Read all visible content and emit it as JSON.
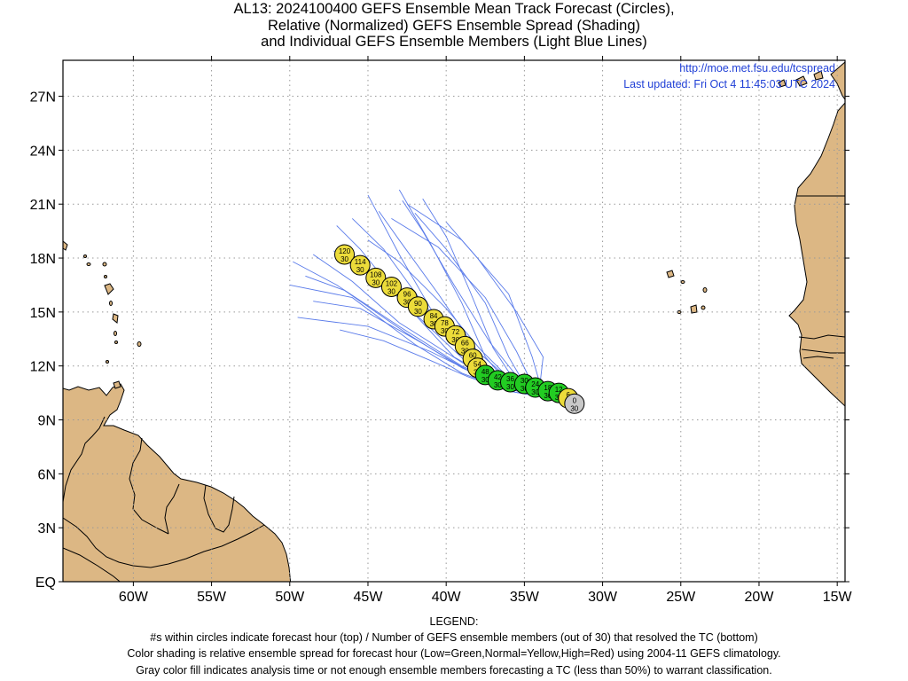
{
  "title": {
    "line1": "AL13: 2024100400 GEFS Ensemble Mean Track Forecast (Circles),",
    "line2": "Relative (Normalized) GEFS Ensemble Spread (Shading)",
    "line3": "and Individual GEFS Ensemble Members (Light Blue Lines)"
  },
  "info": {
    "url": "http://moe.met.fsu.edu/tcspread",
    "updated": "Last updated: Fri Oct 4 11:45:03 UTC 2024"
  },
  "axes": {
    "lat_ticks": [
      {
        "value": 27,
        "label": "27N"
      },
      {
        "value": 24,
        "label": "24N"
      },
      {
        "value": 21,
        "label": "21N"
      },
      {
        "value": 18,
        "label": "18N"
      },
      {
        "value": 15,
        "label": "15N"
      },
      {
        "value": 12,
        "label": "12N"
      },
      {
        "value": 9,
        "label": "9N"
      },
      {
        "value": 6,
        "label": "6N"
      },
      {
        "value": 3,
        "label": "3N"
      },
      {
        "value": 0,
        "label": "EQ"
      }
    ],
    "lon_ticks": [
      {
        "value": -60,
        "label": "60W"
      },
      {
        "value": -55,
        "label": "55W"
      },
      {
        "value": -50,
        "label": "50W"
      },
      {
        "value": -45,
        "label": "45W"
      },
      {
        "value": -40,
        "label": "40W"
      },
      {
        "value": -35,
        "label": "35W"
      },
      {
        "value": -30,
        "label": "30W"
      },
      {
        "value": -25,
        "label": "25W"
      },
      {
        "value": -20,
        "label": "20W"
      },
      {
        "value": -15,
        "label": "15W"
      }
    ],
    "lon_range": [
      -64.5,
      -14.5
    ],
    "lat_range": [
      0,
      29
    ]
  },
  "colors": {
    "land": "#dcb784",
    "member_lines": "#5a7bea",
    "low_spread": "#22cc22",
    "normal_spread": "#ecdc3a",
    "analysis_gray": "#c8c8c8",
    "grid": "#999999",
    "url_text": "#1f3fd6"
  },
  "track": [
    {
      "hour": "0",
      "members": "30",
      "lon": -31.8,
      "lat": 9.9,
      "color": "gray"
    },
    {
      "hour": "6",
      "members": "30",
      "lon": -32.2,
      "lat": 10.2,
      "color": "yellow"
    },
    {
      "hour": "12",
      "members": "30",
      "lon": -32.8,
      "lat": 10.5,
      "color": "green"
    },
    {
      "hour": "18",
      "members": "30",
      "lon": -33.5,
      "lat": 10.6,
      "color": "green"
    },
    {
      "hour": "24",
      "members": "30",
      "lon": -34.3,
      "lat": 10.8,
      "color": "green"
    },
    {
      "hour": "30",
      "members": "30",
      "lon": -35.0,
      "lat": 11.0,
      "color": "green"
    },
    {
      "hour": "36",
      "members": "30",
      "lon": -35.9,
      "lat": 11.1,
      "color": "green"
    },
    {
      "hour": "42",
      "members": "30",
      "lon": -36.7,
      "lat": 11.2,
      "color": "green"
    },
    {
      "hour": "48",
      "members": "30",
      "lon": -37.5,
      "lat": 11.5,
      "color": "green"
    },
    {
      "hour": "54",
      "members": "30",
      "lon": -38.0,
      "lat": 11.9,
      "color": "yellow"
    },
    {
      "hour": "60",
      "members": "30",
      "lon": -38.3,
      "lat": 12.4,
      "color": "yellow"
    },
    {
      "hour": "66",
      "members": "30",
      "lon": -38.8,
      "lat": 13.1,
      "color": "yellow"
    },
    {
      "hour": "72",
      "members": "30",
      "lon": -39.4,
      "lat": 13.7,
      "color": "yellow"
    },
    {
      "hour": "78",
      "members": "30",
      "lon": -40.1,
      "lat": 14.2,
      "color": "yellow"
    },
    {
      "hour": "84",
      "members": "30",
      "lon": -40.8,
      "lat": 14.6,
      "color": "yellow"
    },
    {
      "hour": "90",
      "members": "30",
      "lon": -41.8,
      "lat": 15.3,
      "color": "yellow"
    },
    {
      "hour": "96",
      "members": "30",
      "lon": -42.5,
      "lat": 15.8,
      "color": "yellow"
    },
    {
      "hour": "102",
      "members": "30",
      "lon": -43.5,
      "lat": 16.4,
      "color": "yellow"
    },
    {
      "hour": "108",
      "members": "30",
      "lon": -44.5,
      "lat": 16.9,
      "color": "yellow"
    },
    {
      "hour": "114",
      "members": "30",
      "lon": -45.5,
      "lat": 17.6,
      "color": "yellow"
    },
    {
      "hour": "120",
      "members": "30",
      "lon": -46.5,
      "lat": 18.2,
      "color": "yellow"
    }
  ],
  "members": [
    [
      [
        -32,
        10
      ],
      [
        -36,
        10.6
      ],
      [
        -39,
        11.6
      ],
      [
        -42,
        13.2
      ],
      [
        -46,
        15.8
      ],
      [
        -50,
        16.5
      ]
    ],
    [
      [
        -32,
        10
      ],
      [
        -36,
        10.7
      ],
      [
        -39,
        12.2
      ],
      [
        -43,
        14.4
      ],
      [
        -46,
        16.7
      ],
      [
        -48.5,
        18.2
      ]
    ],
    [
      [
        -32,
        10
      ],
      [
        -36,
        10.8
      ],
      [
        -38.5,
        12.2
      ],
      [
        -41,
        15.2
      ],
      [
        -43,
        18.2
      ],
      [
        -45,
        21.5
      ]
    ],
    [
      [
        -32,
        10
      ],
      [
        -36,
        11
      ],
      [
        -37.5,
        12.5
      ],
      [
        -39,
        15.5
      ],
      [
        -41,
        18.8
      ],
      [
        -43,
        21.8
      ]
    ],
    [
      [
        -32,
        10
      ],
      [
        -35.5,
        11
      ],
      [
        -37,
        13
      ],
      [
        -38.5,
        16.2
      ],
      [
        -40,
        19.2
      ],
      [
        -41.5,
        21.3
      ]
    ],
    [
      [
        -32,
        10
      ],
      [
        -35,
        11
      ],
      [
        -36,
        12.5
      ],
      [
        -37.5,
        15.5
      ],
      [
        -40,
        18.5
      ],
      [
        -42,
        20.5
      ]
    ],
    [
      [
        -32,
        10
      ],
      [
        -34,
        11
      ],
      [
        -34.5,
        12.5
      ],
      [
        -36,
        16
      ],
      [
        -39,
        19
      ],
      [
        -42.5,
        21
      ]
    ],
    [
      [
        -32,
        10
      ],
      [
        -34,
        11
      ],
      [
        -33.8,
        12.5
      ],
      [
        -35.5,
        15
      ],
      [
        -38,
        18
      ],
      [
        -40,
        20
      ]
    ],
    [
      [
        -32,
        10
      ],
      [
        -35,
        10.8
      ],
      [
        -38,
        11.5
      ],
      [
        -41,
        12.8
      ],
      [
        -45,
        14.2
      ],
      [
        -49.5,
        14.7
      ]
    ],
    [
      [
        -32,
        10
      ],
      [
        -36,
        10.8
      ],
      [
        -39,
        12
      ],
      [
        -43,
        14.2
      ],
      [
        -47,
        16.5
      ],
      [
        -49.8,
        17.8
      ]
    ],
    [
      [
        -32,
        10
      ],
      [
        -36,
        10.8
      ],
      [
        -39.5,
        12.5
      ],
      [
        -43,
        15.8
      ],
      [
        -45.5,
        18.5
      ],
      [
        -47,
        19.8
      ]
    ],
    [
      [
        -32,
        10
      ],
      [
        -35.5,
        10.9
      ],
      [
        -38.5,
        12.6
      ],
      [
        -41.5,
        15.5
      ],
      [
        -44,
        18.5
      ],
      [
        -46,
        20.2
      ]
    ],
    [
      [
        -32,
        10
      ],
      [
        -35.5,
        10.9
      ],
      [
        -38,
        12.8
      ],
      [
        -40.5,
        16
      ],
      [
        -43,
        19
      ],
      [
        -44.3,
        20.6
      ]
    ],
    [
      [
        -32,
        10
      ],
      [
        -35,
        10.9
      ],
      [
        -37.2,
        13.3
      ],
      [
        -39.5,
        16.5
      ],
      [
        -41.5,
        19.5
      ],
      [
        -42.8,
        21.2
      ]
    ],
    [
      [
        -32,
        10
      ],
      [
        -35.5,
        10.8
      ],
      [
        -38.5,
        11.7
      ],
      [
        -42,
        13.5
      ],
      [
        -45.5,
        15.2
      ],
      [
        -48.5,
        15.6
      ]
    ],
    [
      [
        -32,
        10
      ],
      [
        -36,
        10.7
      ],
      [
        -39,
        11.9
      ],
      [
        -42.5,
        13.8
      ],
      [
        -46.5,
        16.2
      ],
      [
        -49,
        17
      ]
    ],
    [
      [
        -32,
        10
      ],
      [
        -35.5,
        10.9
      ],
      [
        -37.8,
        12.9
      ],
      [
        -40,
        15.2
      ],
      [
        -43,
        17.8
      ],
      [
        -45,
        19
      ]
    ],
    [
      [
        -32,
        10
      ],
      [
        -34.5,
        11
      ],
      [
        -35.5,
        12.8
      ],
      [
        -37.5,
        15.8
      ],
      [
        -40.5,
        18.6
      ],
      [
        -43.5,
        20.2
      ]
    ],
    [
      [
        -32,
        10
      ],
      [
        -35.8,
        10.8
      ],
      [
        -38.8,
        12.3
      ],
      [
        -41.5,
        14.5
      ],
      [
        -44.5,
        17
      ],
      [
        -47.2,
        18.4
      ]
    ],
    [
      [
        -32,
        10
      ],
      [
        -36,
        10.6
      ],
      [
        -38.6,
        11.4
      ],
      [
        -41,
        12.3
      ],
      [
        -44,
        13.4
      ],
      [
        -46.8,
        14
      ]
    ]
  ],
  "legend": {
    "title": "LEGEND:",
    "line1": "#s within circles indicate forecast hour (top) / Number of GEFS ensemble members (out of 30) that resolved the TC (bottom)",
    "line2": "Color shading is relative ensemble spread for forecast hour (Low=Green,Normal=Yellow,High=Red) using 2004-11 GEFS climatology.",
    "line3": "Gray color fill indicates analysis time or not enough ensemble members forecasting a TC (less than 50%) to warrant classification."
  }
}
